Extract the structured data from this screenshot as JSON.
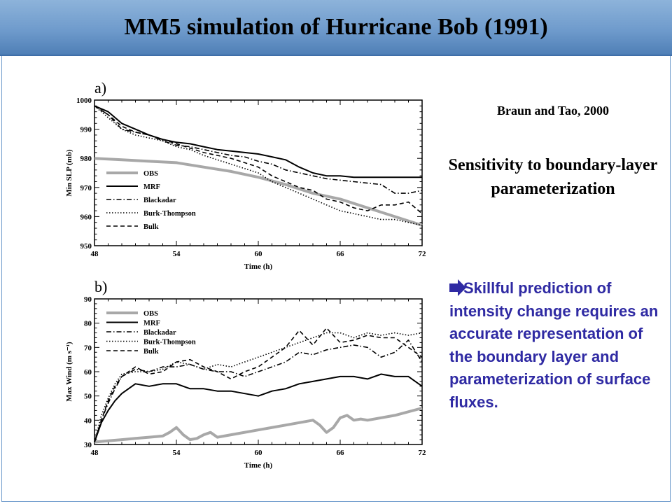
{
  "slide": {
    "title": "MM5 simulation of Hurricane Bob (1991)",
    "citation": "Braun and Tao, 2000",
    "subtitle": "Sensitivity to boundary-layer parameterization",
    "bullet": "Skillful prediction of intensity change requires an accurate representation of the boundary layer and parameterization of surface fluxes."
  },
  "chart_data": [
    {
      "type": "line",
      "panel_label": "a)",
      "xlabel": "Time (h)",
      "ylabel": "Min SLP (mb)",
      "xlim": [
        48,
        72
      ],
      "ylim": [
        950,
        1000
      ],
      "xticks": [
        48,
        54,
        60,
        66,
        72
      ],
      "yticks": [
        950,
        960,
        970,
        980,
        990,
        1000
      ],
      "legend_position": "lower-left",
      "series": [
        {
          "name": "OBS",
          "style": "obs",
          "x": [
            48,
            50,
            52,
            54,
            56,
            58,
            60,
            62,
            64,
            66,
            68,
            70,
            72
          ],
          "y": [
            980,
            979.5,
            979,
            978.5,
            977,
            975.5,
            973.5,
            971,
            968,
            966,
            963,
            960,
            957
          ]
        },
        {
          "name": "MRF",
          "style": "solid",
          "x": [
            48,
            49,
            50,
            51,
            52,
            53,
            54,
            55,
            56,
            57,
            58,
            59,
            60,
            61,
            62,
            63,
            64,
            65,
            66,
            67,
            68,
            69,
            70,
            71,
            72
          ],
          "y": [
            998,
            996,
            992,
            990,
            988,
            986.5,
            985.5,
            985,
            984,
            983,
            982.5,
            982,
            981.5,
            980.5,
            979.5,
            977,
            975,
            974,
            974,
            973.5,
            973.5,
            973.5,
            973.5,
            973.5,
            973.5
          ]
        },
        {
          "name": "Blackadar",
          "style": "dashdot",
          "x": [
            48,
            49,
            50,
            51,
            52,
            53,
            54,
            55,
            56,
            57,
            58,
            59,
            60,
            61,
            62,
            63,
            64,
            65,
            66,
            67,
            68,
            69,
            70,
            71,
            72
          ],
          "y": [
            998,
            995,
            990,
            989,
            988,
            986,
            984.5,
            984,
            983,
            982,
            981,
            980.5,
            979,
            978,
            976,
            975,
            974,
            973,
            972.5,
            972,
            971.5,
            971,
            968,
            968,
            969
          ]
        },
        {
          "name": "Burk-Thompson",
          "style": "dotted",
          "x": [
            48,
            49,
            50,
            51,
            52,
            53,
            54,
            55,
            56,
            57,
            58,
            59,
            60,
            61,
            62,
            63,
            64,
            65,
            66,
            67,
            68,
            69,
            70,
            71,
            72
          ],
          "y": [
            998,
            994,
            990,
            988,
            987,
            986,
            984,
            983,
            981,
            979.5,
            978,
            976.5,
            975,
            972,
            970,
            968,
            966,
            964,
            962,
            961,
            960,
            959,
            959,
            958,
            957
          ]
        },
        {
          "name": "Bulk",
          "style": "dashed",
          "x": [
            48,
            49,
            50,
            51,
            52,
            53,
            54,
            55,
            56,
            57,
            58,
            59,
            60,
            61,
            62,
            63,
            64,
            65,
            66,
            67,
            68,
            69,
            70,
            71,
            72
          ],
          "y": [
            998,
            995,
            991,
            989,
            988,
            986.5,
            985,
            983.5,
            982,
            981,
            980,
            978.5,
            977,
            974,
            972,
            970,
            969,
            966,
            965,
            963,
            962,
            964,
            964,
            965,
            961
          ]
        }
      ]
    },
    {
      "type": "line",
      "panel_label": "b)",
      "xlabel": "Time (h)",
      "ylabel": "Max Wind (m s⁻¹)",
      "xlim": [
        48,
        72
      ],
      "ylim": [
        30,
        90
      ],
      "xticks": [
        48,
        54,
        60,
        66,
        72
      ],
      "yticks": [
        30,
        40,
        50,
        60,
        70,
        80,
        90
      ],
      "legend_position": "top-left",
      "series": [
        {
          "name": "OBS",
          "style": "obs",
          "x": [
            48,
            49,
            50,
            51,
            52,
            53,
            53.5,
            54,
            54.5,
            55,
            55.5,
            56,
            56.5,
            57,
            57.5,
            58,
            60,
            62,
            64,
            64.5,
            65,
            65.5,
            66,
            66.5,
            67,
            67.5,
            68,
            70,
            72
          ],
          "y": [
            31,
            31.5,
            32,
            32.5,
            33,
            33.5,
            35,
            37,
            34,
            32,
            32.5,
            34,
            35,
            33,
            33.5,
            34,
            36,
            38,
            40,
            38,
            35,
            37,
            41,
            42,
            40,
            40.5,
            40,
            42,
            45
          ]
        },
        {
          "name": "MRF",
          "style": "solid",
          "x": [
            48,
            48.5,
            49,
            49.5,
            50,
            51,
            52,
            53,
            54,
            55,
            56,
            57,
            58,
            59,
            60,
            61,
            62,
            63,
            64,
            65,
            66,
            67,
            68,
            69,
            70,
            71,
            72
          ],
          "y": [
            31,
            39,
            44,
            48,
            51,
            55,
            54,
            55,
            55,
            53,
            53,
            52,
            52,
            51,
            50,
            52,
            53,
            55,
            56,
            57,
            58,
            58,
            57,
            59,
            58,
            58,
            54
          ]
        },
        {
          "name": "Blackadar",
          "style": "dashdot",
          "x": [
            48,
            48.5,
            49,
            49.5,
            50,
            51,
            52,
            53,
            54,
            55,
            56,
            57,
            58,
            59,
            60,
            61,
            62,
            63,
            64,
            65,
            66,
            67,
            68,
            69,
            70,
            71,
            72
          ],
          "y": [
            31,
            40,
            47,
            53,
            58,
            61,
            60,
            62,
            62,
            63,
            61,
            60,
            60,
            58,
            60,
            62,
            64,
            68,
            67,
            69,
            70,
            71,
            70,
            66,
            68,
            73,
            64
          ]
        },
        {
          "name": "Burk-Thompson",
          "style": "dotted",
          "x": [
            48,
            48.5,
            49,
            49.5,
            50,
            51,
            52,
            53,
            54,
            55,
            56,
            57,
            58,
            59,
            60,
            61,
            62,
            63,
            64,
            65,
            66,
            67,
            68,
            69,
            70,
            71,
            72
          ],
          "y": [
            31,
            42,
            49,
            55,
            59,
            60,
            60,
            61,
            64,
            63,
            61,
            63,
            62,
            64,
            66,
            68,
            70,
            72,
            74,
            76,
            76,
            74,
            76,
            75,
            76,
            75,
            76
          ]
        },
        {
          "name": "Bulk",
          "style": "dashed",
          "x": [
            48,
            48.5,
            49,
            49.5,
            50,
            51,
            52,
            53,
            54,
            55,
            56,
            57,
            58,
            59,
            60,
            61,
            62,
            63,
            64,
            65,
            66,
            67,
            68,
            69,
            70,
            71,
            72
          ],
          "y": [
            31,
            40,
            48,
            54,
            58,
            62,
            59,
            60,
            64,
            65,
            62,
            60,
            57,
            60,
            62,
            66,
            70,
            77,
            71,
            78,
            72,
            73,
            75,
            74,
            74,
            70,
            66
          ]
        }
      ]
    }
  ]
}
